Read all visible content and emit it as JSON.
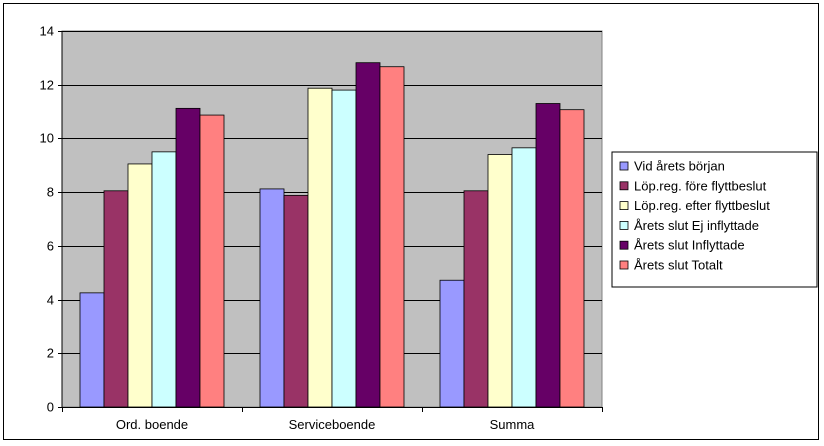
{
  "chart_data": {
    "type": "bar",
    "title": "",
    "xlabel": "",
    "ylabel": "",
    "categories": [
      "Ord. boende",
      "Serviceboende",
      "Summa"
    ],
    "ylim": [
      0,
      14
    ],
    "yticks": [
      0,
      2,
      4,
      6,
      8,
      10,
      12,
      14
    ],
    "grid": true,
    "plot_background": "#c0c0c0",
    "legend_position": "right",
    "series": [
      {
        "name": "Vid årets  början",
        "color": "#9999ff",
        "values": [
          4.25,
          8.12,
          4.72
        ]
      },
      {
        "name": "Löp.reg. före flyttbeslut",
        "color": "#993366",
        "values": [
          8.05,
          7.88,
          8.05
        ]
      },
      {
        "name": "Löp.reg. efter flyttbeslut",
        "color": "#ffffcc",
        "values": [
          9.05,
          11.87,
          9.4
        ]
      },
      {
        "name": "Årets slut  Ej inflyttade",
        "color": "#ccffff",
        "values": [
          9.5,
          11.8,
          9.65
        ]
      },
      {
        "name": "Årets slut  Inflyttade",
        "color": "#660066",
        "values": [
          11.12,
          12.82,
          11.3
        ]
      },
      {
        "name": "Årets slut Totalt",
        "color": "#ff8080",
        "values": [
          10.87,
          12.67,
          11.07
        ]
      }
    ]
  }
}
